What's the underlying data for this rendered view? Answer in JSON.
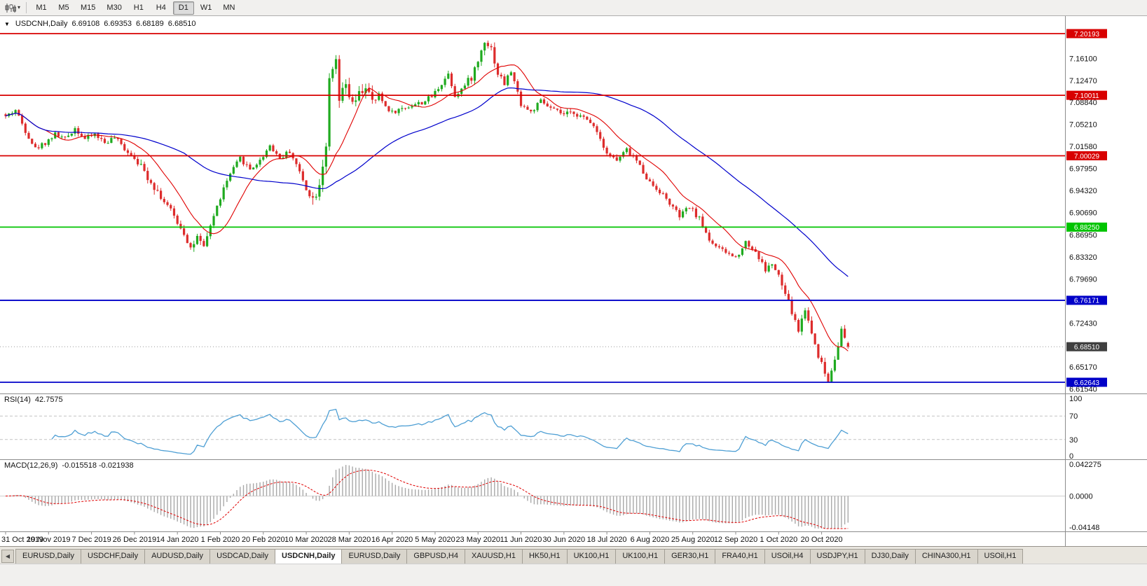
{
  "toolbar": {
    "chart_type_icon": "candlestick-chart-icon",
    "timeframes": [
      {
        "label": "M1",
        "active": false
      },
      {
        "label": "M5",
        "active": false
      },
      {
        "label": "M15",
        "active": false
      },
      {
        "label": "M30",
        "active": false
      },
      {
        "label": "H1",
        "active": false
      },
      {
        "label": "H4",
        "active": false
      },
      {
        "label": "D1",
        "active": true
      },
      {
        "label": "W1",
        "active": false
      },
      {
        "label": "MN",
        "active": false
      }
    ]
  },
  "chart": {
    "type": "candlestick",
    "symbol_title": "USDCNH,Daily",
    "quote": {
      "open": "6.69108",
      "high": "6.69353",
      "low": "6.68189",
      "close": "6.68510"
    },
    "price_axis_labels": [
      "7.16100",
      "7.12470",
      "7.08840",
      "7.05210",
      "7.01580",
      "6.97950",
      "6.94320",
      "6.90690",
      "6.86950",
      "6.83320",
      "6.79690",
      "6.72430",
      "6.65170",
      "6.61540"
    ],
    "hlines": [
      {
        "price": 7.20193,
        "label": "7.20193",
        "color": "#d80000"
      },
      {
        "price": 7.10011,
        "label": "7.10011",
        "color": "#d80000"
      },
      {
        "price": 7.00029,
        "label": "7.00029",
        "color": "#d80000"
      },
      {
        "price": 6.8825,
        "label": "6.88250",
        "color": "#00c400"
      },
      {
        "price": 6.76171,
        "label": "6.76171",
        "color": "#0000c8"
      },
      {
        "price": 6.62643,
        "label": "6.62643",
        "color": "#0000c8"
      }
    ],
    "current_price": {
      "price": 6.6851,
      "label": "6.68510",
      "color": "#3f3f3f"
    },
    "dates": [
      [
        0,
        "31 Oct 2019"
      ],
      [
        13,
        "19 Nov 2019"
      ],
      [
        26,
        "7 Dec 2019"
      ],
      [
        39,
        "26 Dec 2019"
      ],
      [
        52,
        "14 Jan 2020"
      ],
      [
        65,
        "1 Feb 2020"
      ],
      [
        78,
        "20 Feb 2020"
      ],
      [
        91,
        "10 Mar 2020"
      ],
      [
        104,
        "28 Mar 2020"
      ],
      [
        117,
        "16 Apr 2020"
      ],
      [
        130,
        "5 May 2020"
      ],
      [
        143,
        "23 May 2020"
      ],
      [
        156,
        "11 Jun 2020"
      ],
      [
        169,
        "30 Jun 2020"
      ],
      [
        182,
        "18 Jul 2020"
      ],
      [
        195,
        "6 Aug 2020"
      ],
      [
        208,
        "25 Aug 2020"
      ],
      [
        221,
        "12 Sep 2020"
      ],
      [
        234,
        "1 Oct 2020"
      ],
      [
        247,
        "20 Oct 2020"
      ]
    ],
    "candles": {
      "count": 256,
      "seed": 42,
      "noise_amp": 0.004,
      "wick_amp": 0.005,
      "vol_zones": [
        [
          41,
          62,
          1.6
        ],
        [
          93,
          113,
          2.4
        ],
        [
          140,
          152,
          1.6
        ],
        [
          234,
          256,
          1.4
        ]
      ],
      "anchors": [
        [
          0,
          7.065
        ],
        [
          3,
          7.076
        ],
        [
          6,
          7.042
        ],
        [
          9,
          7.012
        ],
        [
          12,
          7.022
        ],
        [
          15,
          7.036
        ],
        [
          18,
          7.028
        ],
        [
          21,
          7.046
        ],
        [
          24,
          7.028
        ],
        [
          27,
          7.036
        ],
        [
          30,
          7.022
        ],
        [
          33,
          7.03
        ],
        [
          36,
          7.012
        ],
        [
          39,
          6.998
        ],
        [
          42,
          6.974
        ],
        [
          45,
          6.95
        ],
        [
          48,
          6.925
        ],
        [
          51,
          6.9
        ],
        [
          54,
          6.874
        ],
        [
          56,
          6.848
        ],
        [
          58,
          6.864
        ],
        [
          60,
          6.846
        ],
        [
          62,
          6.886
        ],
        [
          64,
          6.916
        ],
        [
          66,
          6.946
        ],
        [
          68,
          6.97
        ],
        [
          71,
          6.996
        ],
        [
          74,
          6.978
        ],
        [
          77,
          6.992
        ],
        [
          80,
          7.018
        ],
        [
          83,
          6.996
        ],
        [
          86,
          7.008
        ],
        [
          88,
          6.986
        ],
        [
          91,
          6.946
        ],
        [
          93,
          6.928
        ],
        [
          95,
          6.956
        ],
        [
          97,
          7.02
        ],
        [
          98,
          7.12
        ],
        [
          100,
          7.155
        ],
        [
          101,
          7.09
        ],
        [
          103,
          7.116
        ],
        [
          105,
          7.082
        ],
        [
          107,
          7.1
        ],
        [
          109,
          7.116
        ],
        [
          111,
          7.086
        ],
        [
          113,
          7.1
        ],
        [
          115,
          7.082
        ],
        [
          117,
          7.072
        ],
        [
          120,
          7.078
        ],
        [
          123,
          7.084
        ],
        [
          126,
          7.088
        ],
        [
          129,
          7.098
        ],
        [
          132,
          7.12
        ],
        [
          134,
          7.136
        ],
        [
          136,
          7.1
        ],
        [
          139,
          7.116
        ],
        [
          141,
          7.13
        ],
        [
          143,
          7.156
        ],
        [
          145,
          7.192
        ],
        [
          147,
          7.178
        ],
        [
          149,
          7.136
        ],
        [
          151,
          7.12
        ],
        [
          153,
          7.14
        ],
        [
          156,
          7.086
        ],
        [
          159,
          7.072
        ],
        [
          162,
          7.09
        ],
        [
          165,
          7.078
        ],
        [
          169,
          7.068
        ],
        [
          172,
          7.072
        ],
        [
          175,
          7.062
        ],
        [
          178,
          7.052
        ],
        [
          182,
          7.006
        ],
        [
          185,
          6.992
        ],
        [
          188,
          7.01
        ],
        [
          191,
          6.992
        ],
        [
          195,
          6.956
        ],
        [
          198,
          6.942
        ],
        [
          201,
          6.922
        ],
        [
          204,
          6.9
        ],
        [
          207,
          6.916
        ],
        [
          210,
          6.896
        ],
        [
          213,
          6.862
        ],
        [
          216,
          6.846
        ],
        [
          219,
          6.838
        ],
        [
          221,
          6.832
        ],
        [
          224,
          6.858
        ],
        [
          227,
          6.842
        ],
        [
          230,
          6.812
        ],
        [
          232,
          6.822
        ],
        [
          234,
          6.8
        ],
        [
          236,
          6.772
        ],
        [
          238,
          6.742
        ],
        [
          240,
          6.712
        ],
        [
          242,
          6.748
        ],
        [
          244,
          6.708
        ],
        [
          246,
          6.672
        ],
        [
          248,
          6.642
        ],
        [
          249,
          6.628
        ],
        [
          251,
          6.668
        ],
        [
          253,
          6.712
        ],
        [
          255,
          6.685
        ]
      ],
      "last": {
        "o": 6.69108,
        "h": 6.69353,
        "l": 6.68189,
        "c": 6.6851
      }
    },
    "ma": {
      "fast_period": 13,
      "fast_color": "#e00000",
      "slow_period": 55,
      "slow_color": "#0000cc"
    },
    "colors": {
      "up": "#1faa1f",
      "down": "#dd2c2c"
    }
  },
  "rsi": {
    "label": "RSI(14)",
    "value": "42.7575",
    "period": 14,
    "axis": [
      [
        "100",
        100
      ],
      [
        "70",
        70
      ],
      [
        "30",
        30
      ],
      [
        "0",
        0
      ]
    ],
    "levels": [
      70,
      30
    ],
    "color": "#4e9fd4"
  },
  "macd": {
    "label": "MACD(12,26,9)",
    "values": "-0.015518 -0.021938",
    "fast": 12,
    "slow": 26,
    "signal": 9,
    "axis_top": "0.042275",
    "axis_zero": "0.0000",
    "axis_bottom": "-0.04148",
    "range": [
      -0.04148,
      0.042275
    ],
    "hist_color": "#a8a8a8",
    "signal_color": "#e00000"
  },
  "tabs": {
    "scroll_left": "◀",
    "items": [
      {
        "label": "EURUSD,Daily",
        "active": false
      },
      {
        "label": "USDCHF,Daily",
        "active": false
      },
      {
        "label": "AUDUSD,Daily",
        "active": false
      },
      {
        "label": "USDCAD,Daily",
        "active": false
      },
      {
        "label": "USDCNH,Daily",
        "active": true
      },
      {
        "label": "EURUSD,Daily",
        "active": false
      },
      {
        "label": "GBPUSD,H4",
        "active": false
      },
      {
        "label": "XAUUSD,H1",
        "active": false
      },
      {
        "label": "HK50,H1",
        "active": false
      },
      {
        "label": "UK100,H1",
        "active": false
      },
      {
        "label": "UK100,H1",
        "active": false
      },
      {
        "label": "GER30,H1",
        "active": false
      },
      {
        "label": "FRA40,H1",
        "active": false
      },
      {
        "label": "USOil,H4",
        "active": false
      },
      {
        "label": "USDJPY,H1",
        "active": false
      },
      {
        "label": "DJ30,Daily",
        "active": false
      },
      {
        "label": "CHINA300,H1",
        "active": false
      },
      {
        "label": "USOil,H1",
        "active": false
      }
    ]
  }
}
